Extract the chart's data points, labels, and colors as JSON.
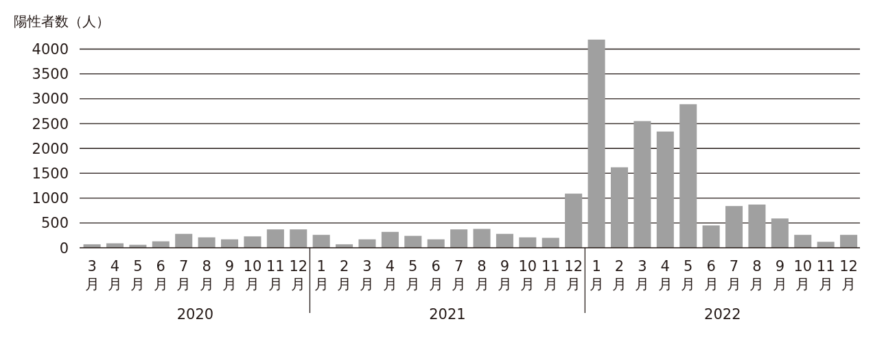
{
  "chart_data": {
    "type": "bar",
    "ylabel": "陽性者数（人）",
    "x": [
      "2020-03",
      "2020-04",
      "2020-05",
      "2020-06",
      "2020-07",
      "2020-08",
      "2020-09",
      "2020-10",
      "2020-11",
      "2020-12",
      "2021-01",
      "2021-02",
      "2021-03",
      "2021-04",
      "2021-05",
      "2021-06",
      "2021-07",
      "2021-08",
      "2021-09",
      "2021-10",
      "2021-11",
      "2021-12",
      "2022-01",
      "2022-02",
      "2022-03",
      "2022-04",
      "2022-05",
      "2022-06",
      "2022-07",
      "2022-08",
      "2022-09",
      "2022-10",
      "2022-11",
      "2022-12"
    ],
    "values": [
      70,
      90,
      60,
      130,
      280,
      210,
      170,
      230,
      370,
      370,
      260,
      70,
      170,
      320,
      240,
      170,
      370,
      380,
      280,
      210,
      200,
      1090,
      4190,
      1620,
      2550,
      2340,
      2890,
      450,
      840,
      870,
      590,
      260,
      120,
      260
    ],
    "color": "#a0a0a0",
    "xlim": [
      "2020-02-15",
      "2022-12-16"
    ],
    "xticks": [
      {
        "value": "2020-03",
        "label": "3月"
      },
      {
        "value": "2020-04",
        "label": "4月"
      },
      {
        "value": "2020-05",
        "label": "5月"
      },
      {
        "value": "2020-06",
        "label": "6月"
      },
      {
        "value": "2020-07",
        "label": "7月"
      },
      {
        "value": "2020-08",
        "label": "8月"
      },
      {
        "value": "2020-09",
        "label": "9月"
      },
      {
        "value": "2020-10",
        "label": "10月"
      },
      {
        "value": "2020-11",
        "label": "11月"
      },
      {
        "value": "2020-12",
        "label": "12月"
      },
      {
        "value": "2021-01",
        "label": "1月"
      },
      {
        "value": "2021-02",
        "label": "2月"
      },
      {
        "value": "2021-03",
        "label": "3月"
      },
      {
        "value": "2021-04",
        "label": "4月"
      },
      {
        "value": "2021-05",
        "label": "5月"
      },
      {
        "value": "2021-06",
        "label": "6月"
      },
      {
        "value": "2021-07",
        "label": "7月"
      },
      {
        "value": "2021-08",
        "label": "8月"
      },
      {
        "value": "2021-09",
        "label": "9月"
      },
      {
        "value": "2021-10",
        "label": "10月"
      },
      {
        "value": "2021-11",
        "label": "11月"
      },
      {
        "value": "2021-12",
        "label": "12月"
      },
      {
        "value": "2022-01",
        "label": "1月"
      },
      {
        "value": "2022-02",
        "label": "2月"
      },
      {
        "value": "2022-03",
        "label": "3月"
      },
      {
        "value": "2022-04",
        "label": "4月"
      },
      {
        "value": "2022-05",
        "label": "5月"
      },
      {
        "value": "2022-06",
        "label": "6月"
      },
      {
        "value": "2022-07",
        "label": "7月"
      },
      {
        "value": "2022-08",
        "label": "8月"
      },
      {
        "value": "2022-09",
        "label": "9月"
      },
      {
        "value": "2022-10",
        "label": "10月"
      },
      {
        "value": "2022-11",
        "label": "11月"
      },
      {
        "value": "2022-12",
        "label": "12月"
      }
    ],
    "ylim": [
      0,
      4200
    ],
    "yticks": [
      0,
      500,
      1000,
      1500,
      2000,
      2500,
      3000,
      3500,
      4000
    ],
    "grid": "y",
    "annotations": [
      "2020",
      "2021",
      "2022"
    ]
  }
}
